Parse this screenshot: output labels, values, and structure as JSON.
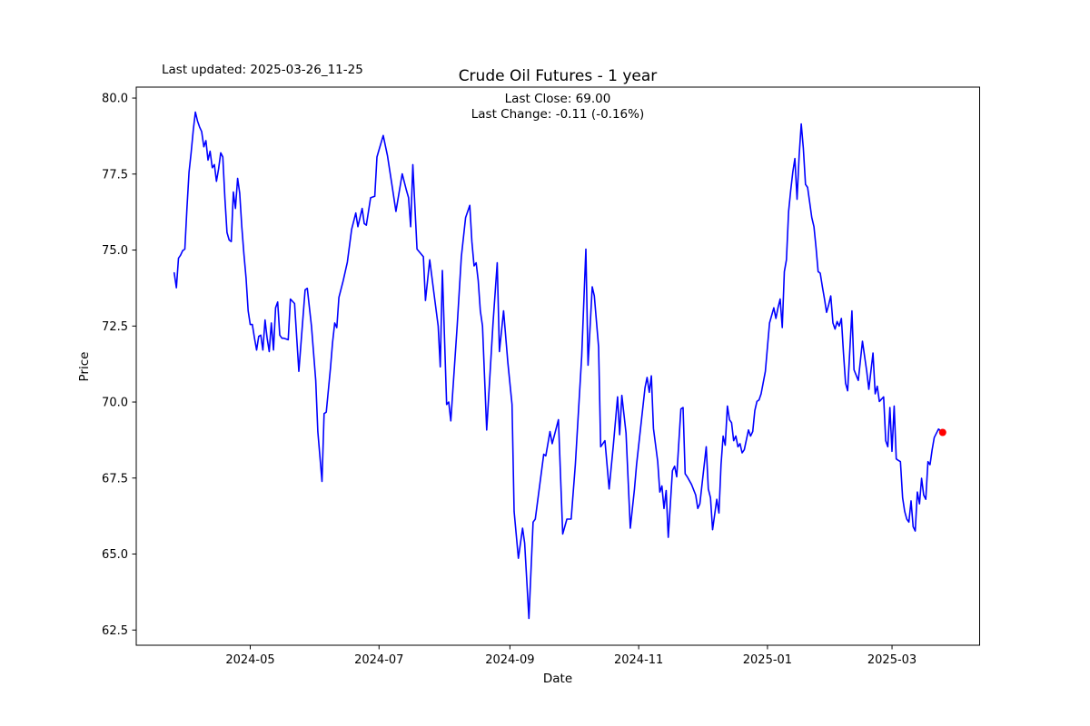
{
  "chart_data": {
    "type": "line",
    "title": "Crude Oil Futures - 1 year",
    "xlabel": "Date",
    "ylabel": "Price",
    "annotation_top_left": "Last updated: 2025-03-26_11-25",
    "subtitle_lines": [
      "Last Close: 69.00",
      "Last Change: -0.11 (-0.16%)"
    ],
    "last_close": 69.0,
    "last_change": -0.11,
    "last_change_pct": -0.16,
    "line_color": "#0000ff",
    "last_point_marker_color": "#ff0000",
    "background_color": "#ffffff",
    "axis_color": "#000000",
    "grid": false,
    "legend": "none",
    "x_unit": "days since 2024-03-26",
    "x_start_date": "2024-03-26",
    "x_end_date": "2025-03-25",
    "x_ticks": [
      {
        "day": 36,
        "label": "2024-05"
      },
      {
        "day": 97,
        "label": "2024-07"
      },
      {
        "day": 159,
        "label": "2024-09"
      },
      {
        "day": 220,
        "label": "2024-11"
      },
      {
        "day": 281,
        "label": "2025-01"
      },
      {
        "day": 340,
        "label": "2025-03"
      }
    ],
    "y_ticks": [
      62.5,
      65.0,
      67.5,
      70.0,
      72.5,
      75.0,
      77.5,
      80.0
    ],
    "xlim_days": [
      -18,
      381.5
    ],
    "ylim": [
      62.0,
      80.36
    ],
    "points": [
      [
        0,
        74.25
      ],
      [
        1,
        73.76
      ],
      [
        2,
        74.73
      ],
      [
        3,
        74.83
      ],
      [
        4,
        74.98
      ],
      [
        5,
        75.03
      ],
      [
        6,
        76.37
      ],
      [
        7,
        77.56
      ],
      [
        8,
        78.2
      ],
      [
        9,
        78.95
      ],
      [
        10,
        79.54
      ],
      [
        11,
        79.25
      ],
      [
        12,
        79.05
      ],
      [
        13,
        78.9
      ],
      [
        14,
        78.4
      ],
      [
        15,
        78.6
      ],
      [
        16,
        77.96
      ],
      [
        17,
        78.25
      ],
      [
        18,
        77.71
      ],
      [
        19,
        77.81
      ],
      [
        20,
        77.26
      ],
      [
        21,
        77.66
      ],
      [
        22,
        78.2
      ],
      [
        23,
        78.06
      ],
      [
        24,
        76.7
      ],
      [
        25,
        75.58
      ],
      [
        26,
        75.33
      ],
      [
        27,
        75.28
      ],
      [
        28,
        76.91
      ],
      [
        29,
        76.37
      ],
      [
        30,
        77.36
      ],
      [
        31,
        76.87
      ],
      [
        32,
        75.77
      ],
      [
        33,
        74.88
      ],
      [
        34,
        74.08
      ],
      [
        35,
        73.0
      ],
      [
        36,
        72.55
      ],
      [
        37,
        72.55
      ],
      [
        38,
        72.1
      ],
      [
        39,
        71.71
      ],
      [
        40,
        72.16
      ],
      [
        41,
        72.2
      ],
      [
        42,
        71.71
      ],
      [
        43,
        72.7
      ],
      [
        44,
        72.1
      ],
      [
        45,
        71.66
      ],
      [
        46,
        72.6
      ],
      [
        47,
        71.71
      ],
      [
        48,
        73.1
      ],
      [
        49,
        73.29
      ],
      [
        50,
        72.2
      ],
      [
        51,
        72.1
      ],
      [
        52,
        72.1
      ],
      [
        54,
        72.05
      ],
      [
        55,
        73.39
      ],
      [
        57,
        73.24
      ],
      [
        59,
        71.01
      ],
      [
        62,
        73.69
      ],
      [
        63,
        73.74
      ],
      [
        65,
        72.5
      ],
      [
        67,
        70.71
      ],
      [
        68,
        69.03
      ],
      [
        70,
        67.39
      ],
      [
        71,
        69.62
      ],
      [
        72,
        69.67
      ],
      [
        74,
        71.11
      ],
      [
        75,
        71.95
      ],
      [
        76,
        72.6
      ],
      [
        77,
        72.45
      ],
      [
        78,
        73.44
      ],
      [
        80,
        73.99
      ],
      [
        82,
        74.6
      ],
      [
        84,
        75.68
      ],
      [
        86,
        76.22
      ],
      [
        87,
        75.77
      ],
      [
        89,
        76.37
      ],
      [
        90,
        75.87
      ],
      [
        91,
        75.82
      ],
      [
        93,
        76.72
      ],
      [
        95,
        76.77
      ],
      [
        96,
        78.06
      ],
      [
        97,
        78.3
      ],
      [
        99,
        78.77
      ],
      [
        101,
        78.1
      ],
      [
        103,
        77.2
      ],
      [
        105,
        76.27
      ],
      [
        108,
        77.51
      ],
      [
        110,
        76.96
      ],
      [
        111,
        76.72
      ],
      [
        112,
        75.77
      ],
      [
        113,
        77.81
      ],
      [
        115,
        75.03
      ],
      [
        118,
        74.78
      ],
      [
        119,
        73.34
      ],
      [
        121,
        74.68
      ],
      [
        123,
        73.59
      ],
      [
        125,
        72.5
      ],
      [
        126,
        71.16
      ],
      [
        127,
        74.33
      ],
      [
        129,
        69.92
      ],
      [
        130,
        70.0
      ],
      [
        131,
        69.38
      ],
      [
        134,
        72.5
      ],
      [
        136,
        74.78
      ],
      [
        138,
        76.07
      ],
      [
        140,
        76.47
      ],
      [
        141,
        75.28
      ],
      [
        142,
        74.48
      ],
      [
        143,
        74.58
      ],
      [
        144,
        73.99
      ],
      [
        145,
        73.0
      ],
      [
        146,
        72.5
      ],
      [
        148,
        69.08
      ],
      [
        151,
        72.6
      ],
      [
        153,
        74.58
      ],
      [
        154,
        71.66
      ],
      [
        156,
        73.0
      ],
      [
        158,
        71.3
      ],
      [
        160,
        69.92
      ],
      [
        161,
        66.4
      ],
      [
        163,
        64.86
      ],
      [
        165,
        65.85
      ],
      [
        166,
        65.36
      ],
      [
        168,
        62.88
      ],
      [
        170,
        66.05
      ],
      [
        171,
        66.15
      ],
      [
        175,
        68.28
      ],
      [
        176,
        68.23
      ],
      [
        178,
        69.03
      ],
      [
        179,
        68.63
      ],
      [
        182,
        69.42
      ],
      [
        184,
        65.66
      ],
      [
        186,
        66.15
      ],
      [
        188,
        66.15
      ],
      [
        190,
        67.94
      ],
      [
        193,
        71.5
      ],
      [
        195,
        75.03
      ],
      [
        196,
        71.21
      ],
      [
        198,
        73.79
      ],
      [
        199,
        73.49
      ],
      [
        201,
        71.81
      ],
      [
        202,
        68.53
      ],
      [
        204,
        68.73
      ],
      [
        206,
        67.14
      ],
      [
        208,
        68.6
      ],
      [
        210,
        70.17
      ],
      [
        211,
        68.93
      ],
      [
        212,
        70.22
      ],
      [
        214,
        68.98
      ],
      [
        216,
        65.85
      ],
      [
        218,
        67.14
      ],
      [
        219,
        67.94
      ],
      [
        223,
        70.47
      ],
      [
        224,
        70.81
      ],
      [
        225,
        70.32
      ],
      [
        226,
        70.86
      ],
      [
        227,
        69.13
      ],
      [
        229,
        68.04
      ],
      [
        230,
        67.04
      ],
      [
        231,
        67.24
      ],
      [
        232,
        66.5
      ],
      [
        233,
        67.09
      ],
      [
        234,
        65.55
      ],
      [
        236,
        67.74
      ],
      [
        237,
        67.89
      ],
      [
        238,
        67.54
      ],
      [
        240,
        69.77
      ],
      [
        241,
        69.82
      ],
      [
        242,
        67.64
      ],
      [
        243,
        67.54
      ],
      [
        245,
        67.29
      ],
      [
        247,
        66.94
      ],
      [
        248,
        66.5
      ],
      [
        249,
        66.65
      ],
      [
        252,
        68.53
      ],
      [
        253,
        67.14
      ],
      [
        254,
        66.85
      ],
      [
        255,
        65.8
      ],
      [
        257,
        66.8
      ],
      [
        258,
        66.35
      ],
      [
        259,
        67.94
      ],
      [
        260,
        68.88
      ],
      [
        261,
        68.58
      ],
      [
        262,
        69.87
      ],
      [
        263,
        69.42
      ],
      [
        264,
        69.32
      ],
      [
        265,
        68.73
      ],
      [
        266,
        68.88
      ],
      [
        267,
        68.53
      ],
      [
        268,
        68.63
      ],
      [
        269,
        68.33
      ],
      [
        270,
        68.43
      ],
      [
        272,
        69.08
      ],
      [
        273,
        68.88
      ],
      [
        274,
        69.03
      ],
      [
        275,
        69.72
      ],
      [
        276,
        70.02
      ],
      [
        277,
        70.07
      ],
      [
        278,
        70.27
      ],
      [
        280,
        71.01
      ],
      [
        281,
        71.81
      ],
      [
        282,
        72.6
      ],
      [
        284,
        73.1
      ],
      [
        285,
        72.75
      ],
      [
        286,
        73.1
      ],
      [
        287,
        73.39
      ],
      [
        288,
        72.45
      ],
      [
        289,
        74.29
      ],
      [
        290,
        74.68
      ],
      [
        291,
        76.27
      ],
      [
        292,
        76.96
      ],
      [
        293,
        77.56
      ],
      [
        294,
        78.01
      ],
      [
        295,
        76.67
      ],
      [
        296,
        78.11
      ],
      [
        297,
        79.15
      ],
      [
        298,
        78.35
      ],
      [
        299,
        77.16
      ],
      [
        300,
        77.06
      ],
      [
        301,
        76.57
      ],
      [
        302,
        76.07
      ],
      [
        303,
        75.77
      ],
      [
        304,
        75.08
      ],
      [
        305,
        74.29
      ],
      [
        306,
        74.24
      ],
      [
        307,
        73.79
      ],
      [
        308,
        73.39
      ],
      [
        309,
        72.95
      ],
      [
        310,
        73.2
      ],
      [
        311,
        73.49
      ],
      [
        312,
        72.6
      ],
      [
        313,
        72.4
      ],
      [
        314,
        72.65
      ],
      [
        315,
        72.5
      ],
      [
        316,
        72.75
      ],
      [
        317,
        71.61
      ],
      [
        318,
        70.62
      ],
      [
        319,
        70.37
      ],
      [
        321,
        73.0
      ],
      [
        322,
        71.06
      ],
      [
        324,
        70.71
      ],
      [
        326,
        72.0
      ],
      [
        328,
        71.01
      ],
      [
        329,
        70.42
      ],
      [
        331,
        71.61
      ],
      [
        332,
        70.27
      ],
      [
        333,
        70.52
      ],
      [
        334,
        70.02
      ],
      [
        336,
        70.17
      ],
      [
        337,
        68.73
      ],
      [
        338,
        68.53
      ],
      [
        339,
        69.82
      ],
      [
        340,
        68.38
      ],
      [
        341,
        69.87
      ],
      [
        342,
        68.13
      ],
      [
        343,
        68.08
      ],
      [
        344,
        68.04
      ],
      [
        345,
        66.85
      ],
      [
        346,
        66.4
      ],
      [
        347,
        66.15
      ],
      [
        348,
        66.05
      ],
      [
        349,
        66.75
      ],
      [
        350,
        65.9
      ],
      [
        351,
        65.76
      ],
      [
        352,
        67.04
      ],
      [
        353,
        66.65
      ],
      [
        354,
        67.49
      ],
      [
        355,
        66.94
      ],
      [
        356,
        66.8
      ],
      [
        357,
        68.04
      ],
      [
        358,
        67.94
      ],
      [
        359,
        68.43
      ],
      [
        360,
        68.83
      ],
      [
        362,
        69.11
      ],
      [
        364,
        69.0
      ]
    ]
  }
}
